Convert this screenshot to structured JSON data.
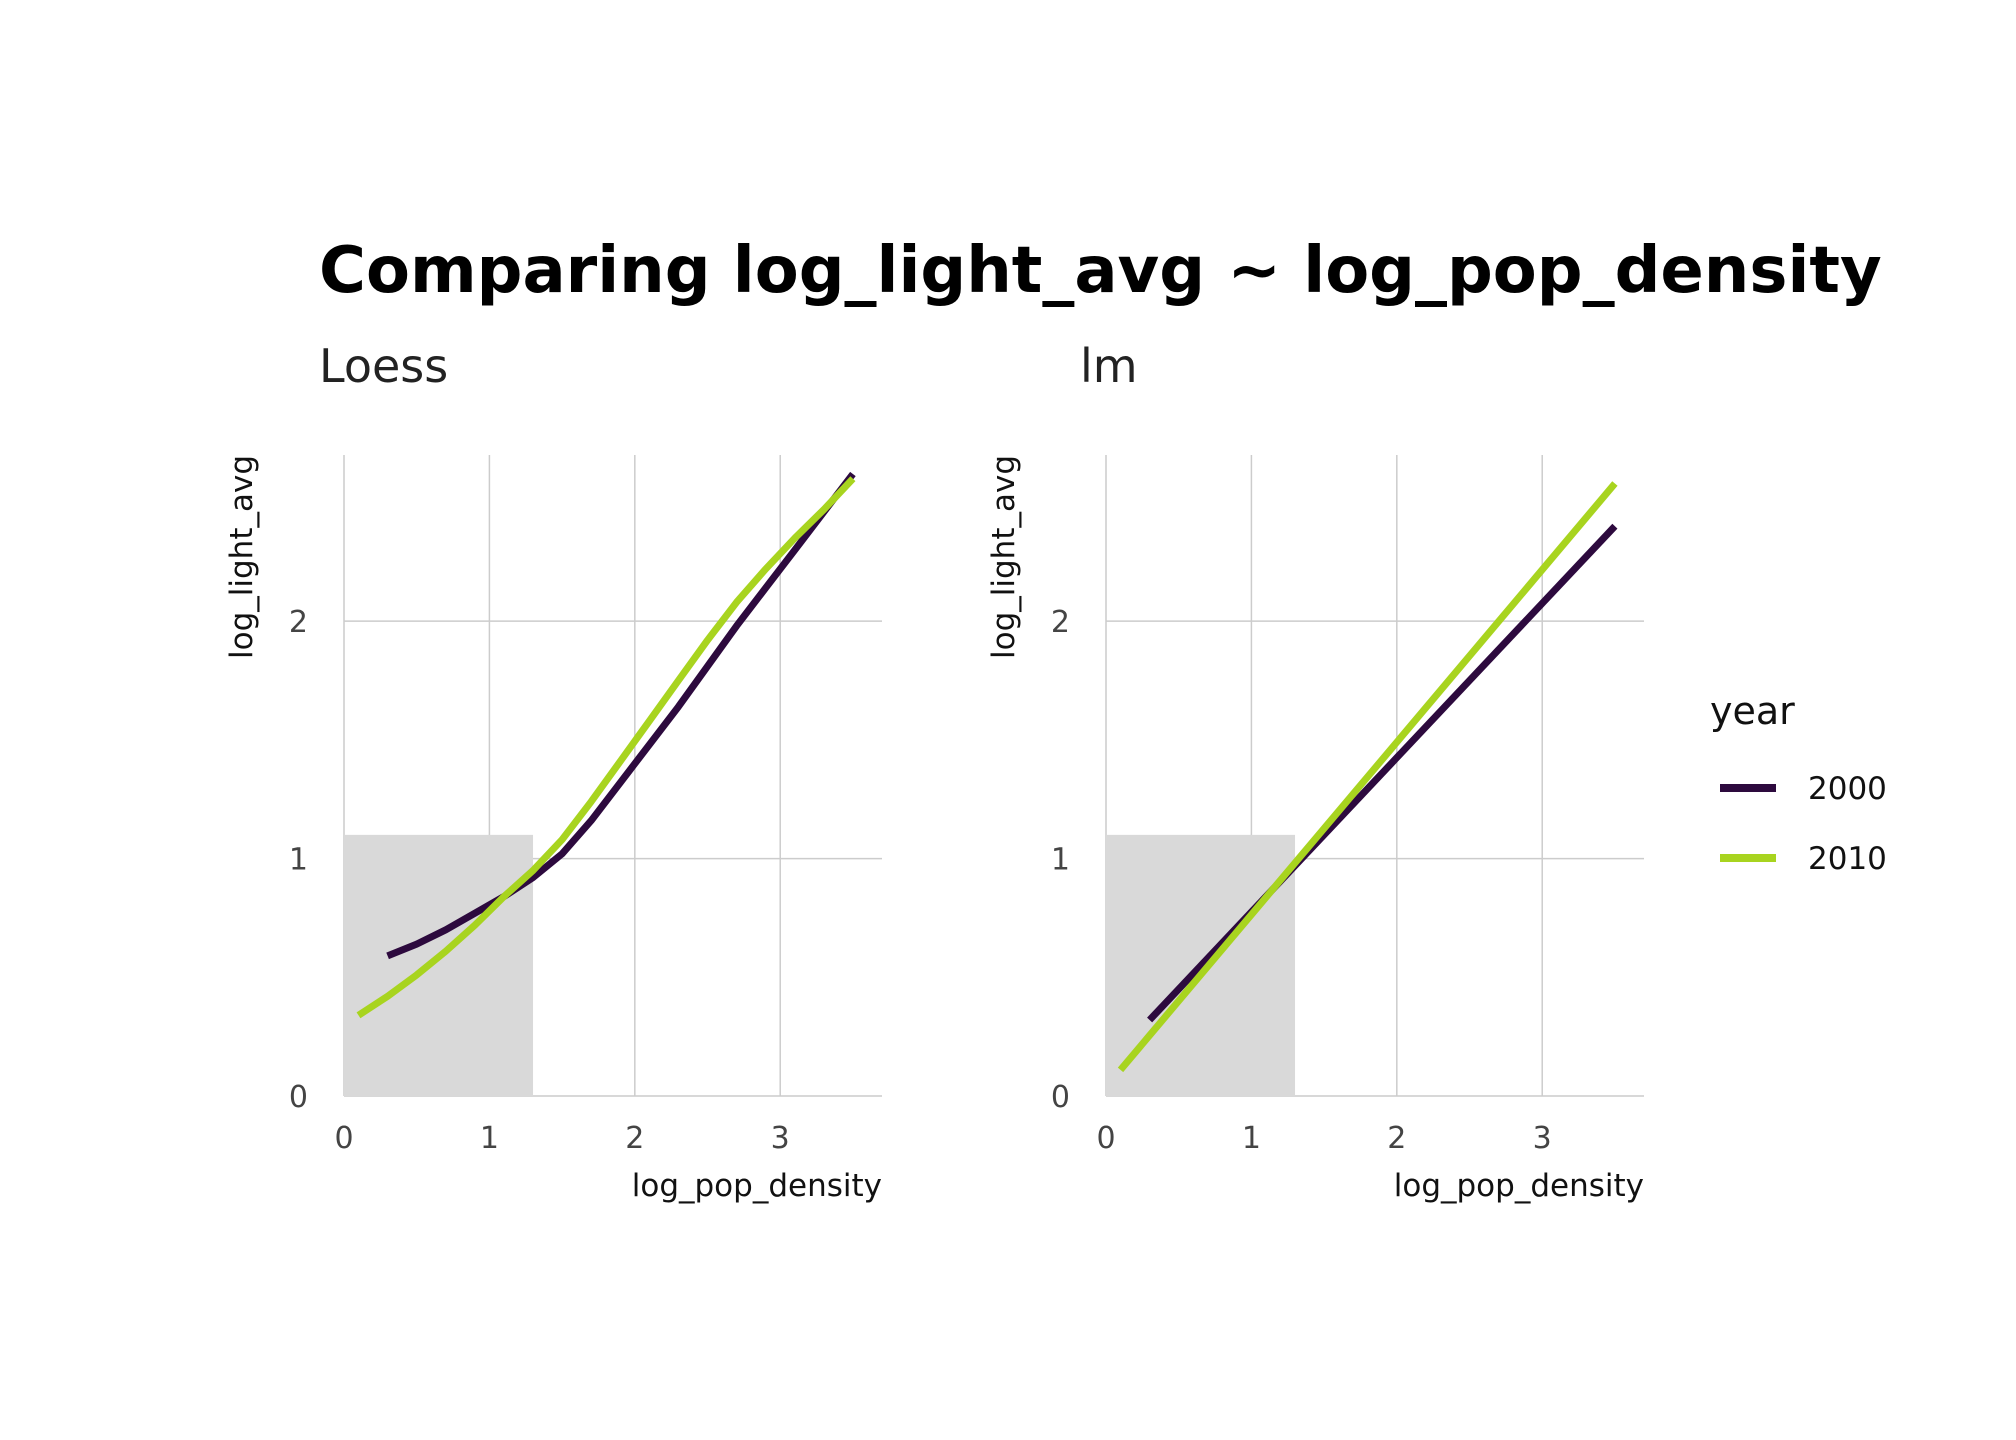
{
  "title": "Comparing log_light_avg ~ log_pop_density",
  "legend": {
    "title": "year",
    "items": [
      {
        "label": "2000",
        "color": "#2d0a3e"
      },
      {
        "label": "2010",
        "color": "#a8d41f"
      }
    ]
  },
  "chart_data": [
    {
      "type": "line",
      "subtitle": "Loess",
      "xlabel": "log_pop_density",
      "ylabel": "log_light_avg",
      "xlim": [
        0,
        3.7
      ],
      "ylim": [
        0,
        2.7
      ],
      "x_ticks": [
        0,
        1,
        2,
        3
      ],
      "y_ticks": [
        0,
        1,
        2
      ],
      "grid": true,
      "shaded_region": {
        "x": [
          0,
          1.3
        ],
        "y": [
          0,
          1.1
        ]
      },
      "series": [
        {
          "name": "2000",
          "color": "#2d0a3e",
          "x": [
            0.3,
            0.5,
            0.7,
            0.9,
            1.1,
            1.3,
            1.5,
            1.7,
            1.9,
            2.1,
            2.3,
            2.5,
            2.7,
            2.9,
            3.1,
            3.3,
            3.5
          ],
          "y": [
            0.59,
            0.64,
            0.7,
            0.77,
            0.84,
            0.92,
            1.02,
            1.16,
            1.32,
            1.48,
            1.64,
            1.81,
            1.98,
            2.14,
            2.3,
            2.46,
            2.62
          ]
        },
        {
          "name": "2010",
          "color": "#a8d41f",
          "x": [
            0.1,
            0.3,
            0.5,
            0.7,
            0.9,
            1.1,
            1.3,
            1.5,
            1.7,
            1.9,
            2.1,
            2.3,
            2.5,
            2.7,
            2.9,
            3.1,
            3.3,
            3.5
          ],
          "y": [
            0.34,
            0.42,
            0.51,
            0.61,
            0.72,
            0.84,
            0.95,
            1.08,
            1.24,
            1.41,
            1.58,
            1.75,
            1.92,
            2.08,
            2.22,
            2.35,
            2.47,
            2.6
          ]
        }
      ]
    },
    {
      "type": "line",
      "subtitle": "lm",
      "xlabel": "log_pop_density",
      "ylabel": "log_light_avg",
      "xlim": [
        0,
        3.7
      ],
      "ylim": [
        0,
        2.7
      ],
      "x_ticks": [
        0,
        1,
        2,
        3
      ],
      "y_ticks": [
        0,
        1,
        2
      ],
      "grid": true,
      "shaded_region": {
        "x": [
          0,
          1.3
        ],
        "y": [
          0,
          1.1
        ]
      },
      "series": [
        {
          "name": "2000",
          "color": "#2d0a3e",
          "x": [
            0.3,
            3.5
          ],
          "y": [
            0.32,
            2.4
          ]
        },
        {
          "name": "2010",
          "color": "#a8d41f",
          "x": [
            0.1,
            3.5
          ],
          "y": [
            0.11,
            2.58
          ]
        }
      ]
    }
  ]
}
